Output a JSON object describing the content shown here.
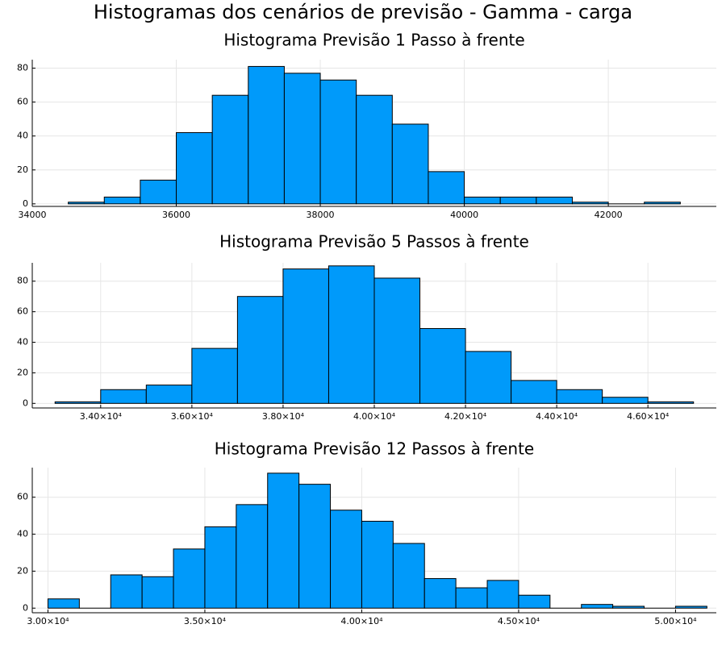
{
  "figure": {
    "title": "Histogramas dos cenários de previsão - Gamma - carga"
  },
  "colors": {
    "bar_fill": "#009AFA",
    "bar_stroke": "#000000",
    "axis": "#000000",
    "grid": "#e6e6e6"
  },
  "chart_data": [
    {
      "type": "bar",
      "title": "Histograma Previsão 1 Passo à frente",
      "xlabel": "",
      "ylabel": "",
      "grid": true,
      "xlim": [
        34000,
        43500
      ],
      "ylim": [
        -1.5,
        85
      ],
      "bin_edges": [
        34500,
        35000,
        35500,
        36000,
        36500,
        37000,
        37500,
        38000,
        38500,
        39000,
        39500,
        40000,
        40500,
        41000,
        41500,
        42000,
        42500,
        43000
      ],
      "values": [
        1,
        4,
        14,
        42,
        64,
        81,
        77,
        73,
        64,
        47,
        19,
        4,
        4,
        4,
        1,
        0,
        1
      ],
      "xticks": [
        34000,
        36000,
        38000,
        40000,
        42000
      ],
      "xtick_labels": [
        "34000",
        "36000",
        "38000",
        "40000",
        "42000"
      ],
      "yticks": [
        0,
        20,
        40,
        60,
        80
      ],
      "ytick_labels": [
        "0",
        "20",
        "40",
        "60",
        "80"
      ]
    },
    {
      "type": "bar",
      "title": "Histograma Previsão 5 Passos à frente",
      "xlabel": "",
      "ylabel": "",
      "grid": true,
      "xlim": [
        32500,
        47500
      ],
      "ylim": [
        -3,
        92
      ],
      "bin_edges": [
        33000,
        34000,
        35000,
        36000,
        37000,
        38000,
        39000,
        40000,
        41000,
        42000,
        43000,
        44000,
        45000,
        46000,
        47000
      ],
      "values": [
        1,
        9,
        12,
        36,
        70,
        88,
        90,
        82,
        49,
        34,
        15,
        9,
        4,
        1
      ],
      "xticks": [
        34000,
        36000,
        38000,
        40000,
        42000,
        44000,
        46000
      ],
      "xtick_labels": [
        "3.40×10⁴",
        "3.60×10⁴",
        "3.80×10⁴",
        "4.00×10⁴",
        "4.20×10⁴",
        "4.40×10⁴",
        "4.60×10⁴"
      ],
      "yticks": [
        0,
        20,
        40,
        60,
        80
      ],
      "ytick_labels": [
        "0",
        "20",
        "40",
        "60",
        "80"
      ]
    },
    {
      "type": "bar",
      "title": "Histograma Previsão 12 Passos à frente",
      "xlabel": "",
      "ylabel": "",
      "grid": true,
      "xlim": [
        29500,
        51300
      ],
      "ylim": [
        -2.5,
        76
      ],
      "bin_edges": [
        30000,
        31000,
        32000,
        33000,
        34000,
        35000,
        36000,
        37000,
        38000,
        39000,
        40000,
        41000,
        42000,
        43000,
        44000,
        45000,
        46000,
        47000,
        48000,
        49000,
        50000,
        51000
      ],
      "values": [
        5,
        0,
        18,
        17,
        32,
        44,
        56,
        73,
        67,
        53,
        47,
        35,
        16,
        11,
        15,
        7,
        0,
        2,
        1,
        0,
        1
      ],
      "xticks": [
        30000,
        35000,
        40000,
        45000,
        50000
      ],
      "xtick_labels": [
        "3.00×10⁴",
        "3.50×10⁴",
        "4.00×10⁴",
        "4.50×10⁴",
        "5.00×10⁴"
      ],
      "yticks": [
        0,
        20,
        40,
        60
      ],
      "ytick_labels": [
        "0",
        "20",
        "40",
        "60"
      ]
    }
  ]
}
